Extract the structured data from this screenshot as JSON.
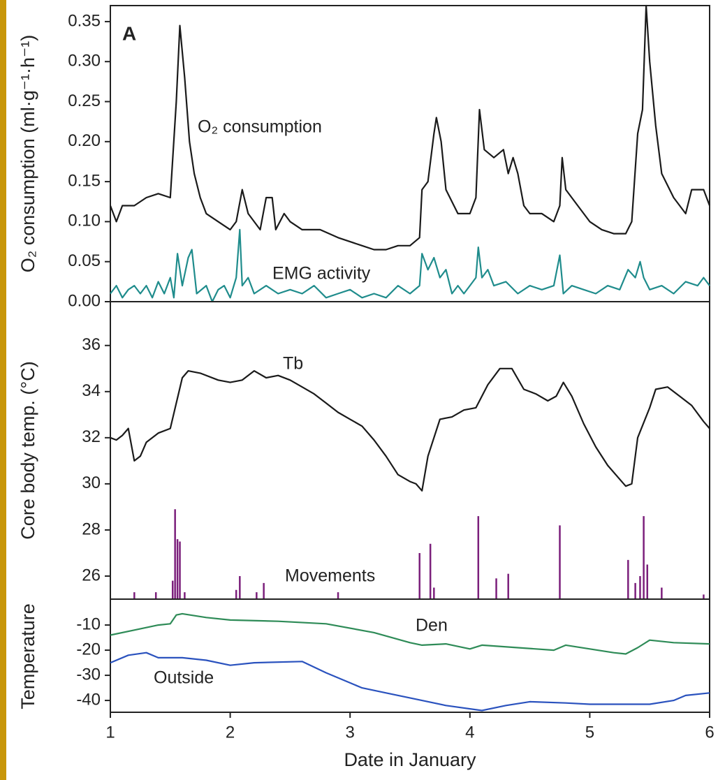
{
  "chart_data": [
    {
      "type": "line",
      "ylabel": "O₂ consumption (ml·g⁻¹·h⁻¹)",
      "annotation": "A",
      "xlim": [
        1,
        6
      ],
      "ylim": [
        0,
        0.37
      ],
      "yticks": [
        {
          "value": 0,
          "label": "0.00"
        },
        0.05,
        {
          "value": 0.1,
          "label": "0.10"
        },
        0.15,
        {
          "value": 0.2,
          "label": "0.20"
        },
        0.25,
        {
          "value": 0.3,
          "label": "0.30"
        },
        0.35
      ],
      "series": [
        {
          "name": "O₂ consumption",
          "color": "#1a1a1a",
          "x": [
            1.0,
            1.05,
            1.1,
            1.2,
            1.3,
            1.4,
            1.5,
            1.55,
            1.58,
            1.62,
            1.66,
            1.7,
            1.75,
            1.8,
            1.9,
            2.0,
            2.05,
            2.1,
            2.15,
            2.2,
            2.25,
            2.3,
            2.35,
            2.38,
            2.45,
            2.5,
            2.6,
            2.75,
            2.9,
            3.0,
            3.1,
            3.2,
            3.3,
            3.4,
            3.5,
            3.58,
            3.6,
            3.65,
            3.7,
            3.72,
            3.76,
            3.8,
            3.9,
            4.0,
            4.05,
            4.08,
            4.12,
            4.2,
            4.28,
            4.32,
            4.36,
            4.4,
            4.45,
            4.5,
            4.6,
            4.7,
            4.75,
            4.77,
            4.8,
            4.9,
            5.0,
            5.1,
            5.2,
            5.3,
            5.35,
            5.4,
            5.44,
            5.47,
            5.5,
            5.55,
            5.6,
            5.7,
            5.8,
            5.85,
            5.95,
            6.0
          ],
          "values": [
            0.12,
            0.1,
            0.12,
            0.12,
            0.13,
            0.135,
            0.13,
            0.25,
            0.345,
            0.28,
            0.2,
            0.16,
            0.13,
            0.11,
            0.1,
            0.09,
            0.1,
            0.14,
            0.11,
            0.1,
            0.09,
            0.13,
            0.13,
            0.09,
            0.11,
            0.1,
            0.09,
            0.09,
            0.08,
            0.075,
            0.07,
            0.065,
            0.065,
            0.07,
            0.07,
            0.08,
            0.14,
            0.15,
            0.21,
            0.23,
            0.2,
            0.14,
            0.11,
            0.11,
            0.13,
            0.24,
            0.19,
            0.18,
            0.19,
            0.16,
            0.18,
            0.16,
            0.12,
            0.11,
            0.11,
            0.1,
            0.12,
            0.18,
            0.14,
            0.12,
            0.1,
            0.09,
            0.085,
            0.085,
            0.1,
            0.21,
            0.24,
            0.37,
            0.3,
            0.22,
            0.16,
            0.13,
            0.11,
            0.14,
            0.14,
            0.12
          ]
        },
        {
          "name": "EMG activity",
          "color": "#1f8c8c",
          "x": [
            1.0,
            1.05,
            1.1,
            1.15,
            1.2,
            1.25,
            1.3,
            1.35,
            1.4,
            1.45,
            1.5,
            1.53,
            1.56,
            1.6,
            1.65,
            1.68,
            1.72,
            1.8,
            1.85,
            1.9,
            1.95,
            2.0,
            2.05,
            2.08,
            2.1,
            2.15,
            2.2,
            2.3,
            2.4,
            2.5,
            2.6,
            2.7,
            2.8,
            2.9,
            3.0,
            3.1,
            3.2,
            3.3,
            3.4,
            3.5,
            3.58,
            3.6,
            3.65,
            3.7,
            3.75,
            3.8,
            3.85,
            3.9,
            3.95,
            4.0,
            4.05,
            4.07,
            4.1,
            4.15,
            4.2,
            4.3,
            4.4,
            4.5,
            4.6,
            4.7,
            4.75,
            4.78,
            4.85,
            4.95,
            5.05,
            5.15,
            5.25,
            5.32,
            5.38,
            5.42,
            5.45,
            5.5,
            5.6,
            5.7,
            5.8,
            5.9,
            5.95,
            6.0
          ],
          "values": [
            0.01,
            0.02,
            0.005,
            0.015,
            0.02,
            0.01,
            0.02,
            0.005,
            0.025,
            0.01,
            0.03,
            0.005,
            0.06,
            0.02,
            0.055,
            0.065,
            0.01,
            0.02,
            0,
            0.015,
            0.02,
            0.005,
            0.03,
            0.09,
            0.02,
            0.03,
            0.01,
            0.02,
            0.01,
            0.015,
            0.01,
            0.02,
            0.005,
            0.01,
            0.015,
            0.005,
            0.01,
            0.005,
            0.02,
            0.01,
            0.02,
            0.06,
            0.04,
            0.055,
            0.03,
            0.04,
            0.01,
            0.02,
            0.01,
            0.02,
            0.03,
            0.068,
            0.03,
            0.04,
            0.02,
            0.025,
            0.01,
            0.02,
            0.015,
            0.02,
            0.058,
            0.01,
            0.02,
            0.015,
            0.01,
            0.02,
            0.015,
            0.04,
            0.03,
            0.05,
            0.03,
            0.015,
            0.02,
            0.01,
            0.025,
            0.02,
            0.03,
            0.02
          ]
        }
      ]
    },
    {
      "type": "line",
      "ylabel": "Core  body temp. (°C)",
      "xlim": [
        1,
        6
      ],
      "ylim": [
        25.0,
        37.9
      ],
      "yticks": [
        26,
        28,
        30,
        32,
        34,
        36
      ],
      "series": [
        {
          "name": "Tb",
          "color": "#1a1a1a",
          "x": [
            1.0,
            1.05,
            1.1,
            1.15,
            1.2,
            1.25,
            1.3,
            1.4,
            1.5,
            1.55,
            1.6,
            1.65,
            1.75,
            1.9,
            2.0,
            2.1,
            2.2,
            2.3,
            2.4,
            2.5,
            2.6,
            2.7,
            2.8,
            2.9,
            3.0,
            3.1,
            3.2,
            3.3,
            3.4,
            3.5,
            3.55,
            3.6,
            3.65,
            3.75,
            3.85,
            3.95,
            4.05,
            4.15,
            4.25,
            4.35,
            4.45,
            4.55,
            4.65,
            4.72,
            4.78,
            4.85,
            4.95,
            5.05,
            5.15,
            5.25,
            5.3,
            5.35,
            5.4,
            5.5,
            5.55,
            5.65,
            5.75,
            5.85,
            5.95,
            6.0
          ],
          "values": [
            32,
            31.9,
            32.1,
            32.4,
            31.0,
            31.2,
            31.8,
            32.2,
            32.4,
            33.5,
            34.6,
            34.9,
            34.8,
            34.5,
            34.4,
            34.5,
            34.9,
            34.6,
            34.7,
            34.5,
            34.2,
            33.9,
            33.5,
            33.1,
            32.8,
            32.5,
            31.9,
            31.2,
            30.4,
            30.1,
            30.0,
            29.7,
            31.2,
            32.8,
            32.9,
            33.2,
            33.3,
            34.3,
            35.0,
            35.0,
            34.1,
            33.9,
            33.6,
            33.8,
            34.4,
            33.8,
            32.6,
            31.6,
            30.8,
            30.2,
            29.9,
            30.0,
            32.0,
            33.3,
            34.1,
            34.2,
            33.8,
            33.4,
            32.7,
            32.4
          ]
        },
        {
          "name": "Movements",
          "color": "#7b1f7b",
          "style": "impulse",
          "x": [
            1.2,
            1.38,
            1.52,
            1.54,
            1.56,
            1.58,
            1.62,
            2.05,
            2.08,
            2.22,
            2.28,
            2.9,
            3.58,
            3.67,
            3.7,
            4.07,
            4.22,
            4.32,
            4.75,
            5.32,
            5.38,
            5.42,
            5.45,
            5.48,
            5.6,
            5.95
          ],
          "values": [
            25.3,
            25.3,
            25.8,
            28.9,
            27.6,
            27.5,
            25.3,
            25.4,
            26.0,
            25.3,
            25.7,
            25.3,
            27.0,
            27.4,
            25.5,
            28.6,
            25.9,
            26.1,
            28.2,
            26.7,
            25.7,
            26.0,
            28.6,
            26.5,
            25.5,
            25.2
          ]
        }
      ]
    },
    {
      "type": "line",
      "ylabel": "Temperature",
      "xlabel": "Date in January",
      "xlim": [
        1,
        6
      ],
      "ylim": [
        -44.7,
        0.3
      ],
      "xticks": [
        1,
        2,
        3,
        4,
        5,
        6
      ],
      "yticks": [
        -40,
        -30,
        -20,
        -10
      ],
      "series": [
        {
          "name": "Den",
          "color": "#2e8b57",
          "x": [
            1.0,
            1.2,
            1.4,
            1.5,
            1.55,
            1.6,
            1.8,
            2.0,
            2.4,
            2.8,
            3.2,
            3.5,
            3.6,
            3.8,
            4.0,
            4.1,
            4.4,
            4.7,
            4.8,
            5.0,
            5.2,
            5.3,
            5.4,
            5.5,
            5.7,
            6.0
          ],
          "values": [
            -14,
            -12,
            -10,
            -9.5,
            -6,
            -5.5,
            -7,
            -8,
            -8.5,
            -9.5,
            -13,
            -17,
            -18,
            -17.5,
            -19.5,
            -18,
            -19,
            -20,
            -18,
            -19.5,
            -21,
            -21.5,
            -19,
            -16,
            -17,
            -17.5
          ]
        },
        {
          "name": "Outside",
          "color": "#2a52be",
          "x": [
            1.0,
            1.15,
            1.3,
            1.4,
            1.6,
            1.8,
            2.0,
            2.2,
            2.6,
            2.8,
            3.0,
            3.1,
            3.3,
            3.6,
            3.8,
            4.1,
            4.3,
            4.5,
            4.8,
            5.0,
            5.5,
            5.7,
            5.8,
            6.0
          ],
          "values": [
            -25,
            -22,
            -21,
            -23,
            -23,
            -24,
            -26,
            -25,
            -24.5,
            -29,
            -33,
            -35,
            -37,
            -40,
            -42,
            -44,
            -42,
            -40.5,
            -41,
            -41.5,
            -41.5,
            -40,
            -38,
            -37
          ]
        }
      ]
    }
  ]
}
